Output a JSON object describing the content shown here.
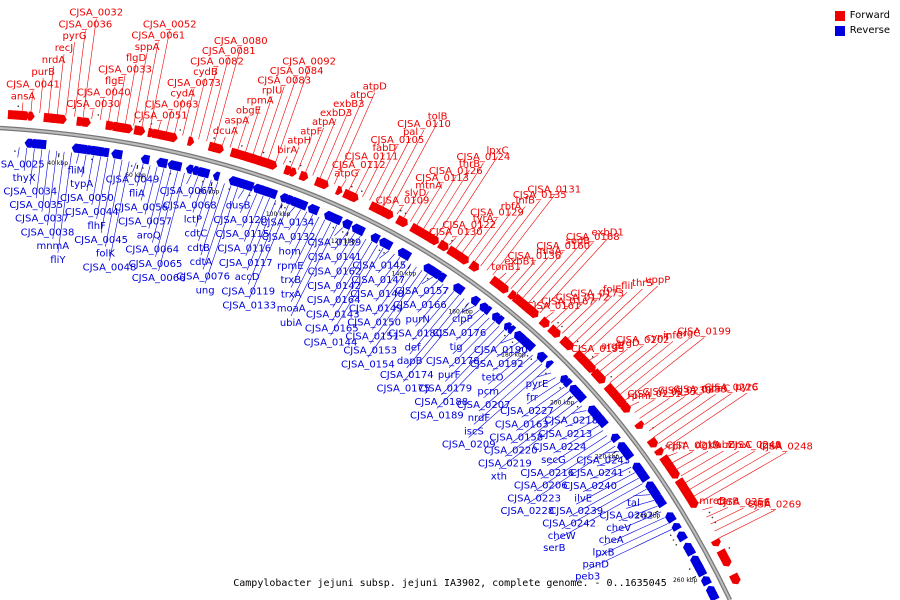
{
  "legend": {
    "forward": {
      "label": "Forward",
      "color": "#ee0000"
    },
    "reverse": {
      "label": "Reverse",
      "color": "#0000dd"
    }
  },
  "caption": "Campylobacter jejuni subsp. jejuni IA3902, complete genome. - 0..1635045",
  "ticks": [
    "40 kbp",
    "60 kbp",
    "80 kbp",
    "100 kbp",
    "120 kbp",
    "140 kbp",
    "160 kbp",
    "180 kbp",
    "200 kbp",
    "220 kbp",
    "240 kbp",
    "260 kbp"
  ],
  "forward_genes": [
    "ansA",
    "CJSA_0041",
    "purB",
    "nrdA",
    "recJ",
    "pyrG",
    "CJSA_0036",
    "CJSA_0032",
    "CJSA_0030",
    "CJSA_0040",
    "flgE",
    "CJSA_0033",
    "flgD",
    "sppA",
    "CJSA_0061",
    "CJSA_0052",
    "CJSA_0051",
    "CJSA_0063",
    "cydA",
    "CJSA_0073",
    "cydB",
    "CJSA_0082",
    "CJSA_0081",
    "CJSA_0080",
    "dcuA",
    "aspA",
    "obgE",
    "rpmA",
    "rplU",
    "CJSA_0083",
    "CJSA_0084",
    "CJSA_0092",
    "birA",
    "atpH",
    "atpF",
    "atpA",
    "exbD3",
    "exbB3",
    "atpC",
    "atpD",
    "atpG",
    "CJSA_0112",
    "CJSA_0111",
    "fabD",
    "CJSA_0105",
    "pal",
    "CJSA_0110",
    "tolB",
    "CJSA_0109",
    "slyD",
    "mtnA",
    "CJSA_0113",
    "CJSA_0126",
    "thrB",
    "CJSA_0124",
    "lpxC",
    "CJSA_0130",
    "CJSA_0122",
    "tyrA",
    "CJSA_0129",
    "rbfA",
    "infB",
    "CJSA_0135",
    "CJSA_0131",
    "tonB1",
    "exbB1",
    "CJSA_0136",
    "miaA",
    "CJSA_0160",
    "sodB",
    "CJSA_0168",
    "exbD1",
    "CJSA_0161",
    "CJSA_0167",
    "CJSA_0172",
    "CJSA_0173",
    "folE",
    "fliI",
    "thrS",
    "uppP",
    "CJSA_0195",
    "argB",
    "argD",
    "CJSA_0202",
    "cynT",
    "infC",
    "argC",
    "CJSA_0199",
    "rpmI",
    "CJSA_0231",
    "CJSA_0235",
    "CJSA_0230",
    "CJSA_0233",
    "moaC",
    "CJSA_0226",
    "pyrC",
    "rplT",
    "CJSA_0215",
    "dgkA",
    "fabZ",
    "mreC",
    "CJSA_0249",
    "lpxA",
    "CJSA_0248",
    "mreB",
    "carB",
    "CJSA_0256",
    "surE",
    "CJSA_0269"
  ],
  "reverse_genes": [
    "CJSA_0025",
    "thyX",
    "CJSA_0034",
    "CJSA_0035",
    "CJSA_0037",
    "CJSA_0038",
    "mnmA",
    "fliY",
    "fliM",
    "typA",
    "CJSA_0050",
    "CJSA_0044",
    "flhF",
    "CJSA_0045",
    "folK",
    "CJSA_0048",
    "CJSA_0049",
    "fliA",
    "CJSA_0056",
    "CJSA_0057",
    "aroQ",
    "CJSA_0064",
    "CJSA_0065",
    "CJSA_0066",
    "CJSA_0067",
    "CJSA_0068",
    "lctP",
    "cdtC",
    "cdtB",
    "cdtA",
    "CJSA_0076",
    "ung",
    "dusB",
    "CJSA_0120",
    "CJSA_0115",
    "CJSA_0116",
    "CJSA_0117",
    "accD",
    "CJSA_0119",
    "CJSA_0133",
    "CJSA_0134",
    "CJSA_0132",
    "hom",
    "rpmE",
    "trxB",
    "trxA",
    "moaA",
    "ubiA",
    "CJSA_0139",
    "CJSA_0141",
    "CJSA_0162",
    "CJSA_0142",
    "CJSA_0164",
    "CJSA_0143",
    "CJSA_0165",
    "CJSA_0144",
    "CJSA_0145",
    "CJSA_0147",
    "CJSA_0148",
    "CJSA_0149",
    "CJSA_0150",
    "CJSA_0151",
    "CJSA_0153",
    "CJSA_0154",
    "CJSA_0157",
    "CJSA_0166",
    "purN",
    "CJSA_0180",
    "def",
    "dapB",
    "CJSA_0174",
    "CJSA_0175",
    "clpP",
    "CJSA_0176",
    "tig",
    "CJSA_0178",
    "purF",
    "CJSA_0179",
    "CJSA_0188",
    "CJSA_0189",
    "CJSA_0190",
    "CJSA_0192",
    "tetO",
    "pcm",
    "CJSA_0207",
    "nrdF",
    "iscS",
    "CJSA_0209",
    "pyrE",
    "frr",
    "CJSA_0227",
    "CJSA_0163",
    "CJSA_0158",
    "CJSA_0220",
    "CJSA_0219",
    "xth",
    "CJSA_0218",
    "CJSA_0213",
    "CJSA_0224",
    "secG",
    "CJSA_0216",
    "CJSA_0206",
    "CJSA_0223",
    "CJSA_0228",
    "CJSA_0243",
    "CJSA_0241",
    "CJSA_0240",
    "ilvE",
    "CJSA_0239",
    "CJSA_0242",
    "cheW",
    "serB",
    "tal",
    "CJSA_0262",
    "cheV",
    "cheA",
    "lpxB",
    "panD",
    "peb3"
  ]
}
